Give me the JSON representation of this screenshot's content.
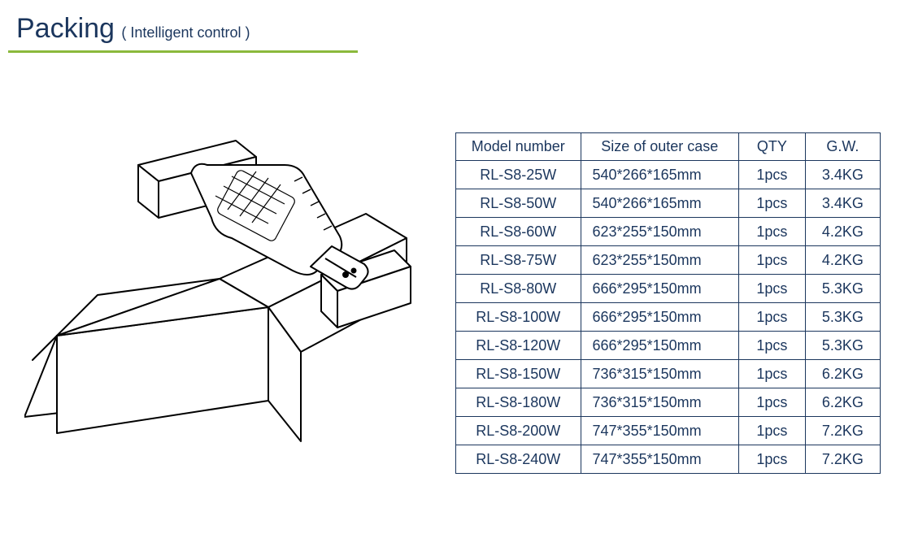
{
  "header": {
    "title": "Packing",
    "subtitle": "( Intelligent control )",
    "rule_color": "#8bb93c",
    "text_color": "#1b365d"
  },
  "illustration": {
    "stroke": "#000000",
    "stroke_width": 2,
    "fill": "#ffffff"
  },
  "table": {
    "border_color": "#1b365d",
    "text_color": "#1b365d",
    "font_size": 18,
    "columns": [
      "Model number",
      "Size of outer case",
      "QTY",
      "G.W."
    ],
    "rows": [
      [
        "RL-S8-25W",
        "540*266*165mm",
        "1pcs",
        "3.4KG"
      ],
      [
        "RL-S8-50W",
        "540*266*165mm",
        "1pcs",
        "3.4KG"
      ],
      [
        "RL-S8-60W",
        "623*255*150mm",
        "1pcs",
        "4.2KG"
      ],
      [
        "RL-S8-75W",
        "623*255*150mm",
        "1pcs",
        "4.2KG"
      ],
      [
        "RL-S8-80W",
        "666*295*150mm",
        "1pcs",
        "5.3KG"
      ],
      [
        "RL-S8-100W",
        "666*295*150mm",
        "1pcs",
        "5.3KG"
      ],
      [
        "RL-S8-120W",
        "666*295*150mm",
        "1pcs",
        "5.3KG"
      ],
      [
        "RL-S8-150W",
        "736*315*150mm",
        "1pcs",
        "6.2KG"
      ],
      [
        "RL-S8-180W",
        "736*315*150mm",
        "1pcs",
        "6.2KG"
      ],
      [
        "RL-S8-200W",
        "747*355*150mm",
        "1pcs",
        "7.2KG"
      ],
      [
        "RL-S8-240W",
        "747*355*150mm",
        "1pcs",
        "7.2KG"
      ]
    ]
  }
}
